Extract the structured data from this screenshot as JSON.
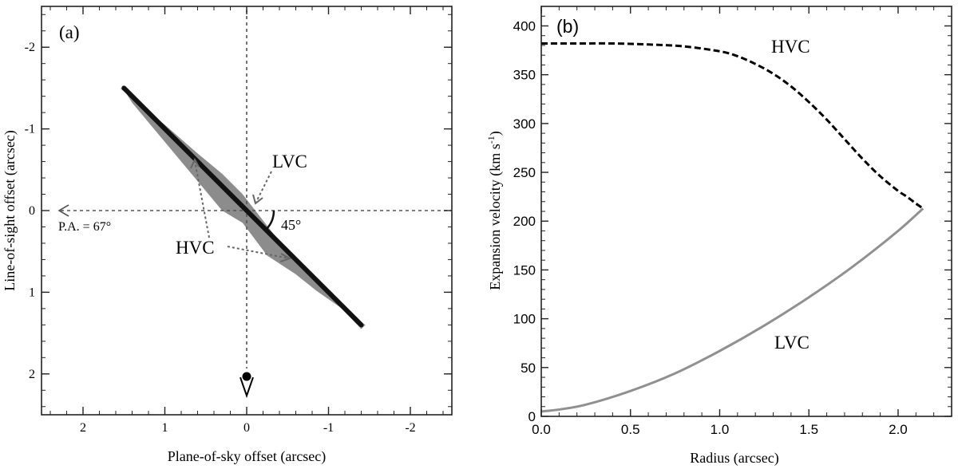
{
  "chart_data": [
    {
      "type": "diagram",
      "panel_label": "(a)",
      "xlabel": "Plane-of-sky offset (arcsec)",
      "ylabel": "Line-of-sight offset (arcsec)",
      "xlim": [
        2.5,
        -2.5
      ],
      "ylim": [
        -2.5,
        2.5
      ],
      "x_ticks": [
        {
          "value": 2,
          "label": "2"
        },
        {
          "value": 1,
          "label": "1"
        },
        {
          "value": 0,
          "label": "0"
        },
        {
          "value": -1,
          "label": "-1"
        },
        {
          "value": -2,
          "label": "-2"
        }
      ],
      "y_ticks": [
        {
          "value": -2,
          "label": "-2"
        },
        {
          "value": -1,
          "label": "-1"
        },
        {
          "value": 0,
          "label": "0"
        },
        {
          "value": 1,
          "label": "1"
        },
        {
          "value": 2,
          "label": "2"
        }
      ],
      "axis_line": {
        "from": [
          1.5,
          -1.5
        ],
        "to": [
          -1.4,
          1.4
        ]
      },
      "envelope": [
        [
          1.55,
          -1.5
        ],
        [
          1.0,
          -1.05
        ],
        [
          0.6,
          -0.7
        ],
        [
          0.3,
          -0.45
        ],
        [
          0.05,
          -0.2
        ],
        [
          -0.3,
          0.25
        ],
        [
          -0.5,
          0.5
        ],
        [
          -0.8,
          0.82
        ],
        [
          -1.4,
          1.45
        ],
        [
          -1.45,
          1.4
        ],
        [
          -0.85,
          0.98
        ],
        [
          -0.6,
          0.78
        ],
        [
          -0.25,
          0.55
        ],
        [
          0.05,
          0.15
        ],
        [
          0.3,
          0.0
        ],
        [
          0.55,
          -0.3
        ],
        [
          0.9,
          -0.72
        ],
        [
          1.4,
          -1.32
        ],
        [
          1.5,
          -1.48
        ]
      ],
      "annotations": {
        "lvc": {
          "text": "LVC",
          "at": [
            -0.58,
            -0.6
          ]
        },
        "hvc": {
          "text": "HVC",
          "at": [
            0.72,
            0.46
          ]
        },
        "pa": {
          "text": "P.A. = 67°",
          "at": [
            2.38,
            0.2
          ]
        },
        "angle": {
          "text": "45°",
          "at": [
            -0.6,
            0.18
          ]
        }
      },
      "observer_marker": {
        "at": [
          0,
          2.1
        ]
      }
    },
    {
      "type": "line",
      "panel_label": "(b)",
      "xlabel": "Radius (arcsec)",
      "ylabel": "Expansion velocity (km s",
      "ylabel_sup": "-1",
      "ylabel_close": ")",
      "xlim": [
        0,
        2.3
      ],
      "ylim": [
        0,
        420
      ],
      "x_ticks": [
        {
          "value": 0,
          "label": "0.0"
        },
        {
          "value": 0.5,
          "label": "0.5"
        },
        {
          "value": 1.0,
          "label": "1.0"
        },
        {
          "value": 1.5,
          "label": "1.5"
        },
        {
          "value": 2.0,
          "label": "2.0"
        }
      ],
      "y_ticks": [
        {
          "value": 0,
          "label": "0"
        },
        {
          "value": 50,
          "label": "50"
        },
        {
          "value": 100,
          "label": "100"
        },
        {
          "value": 150,
          "label": "150"
        },
        {
          "value": 200,
          "label": "200"
        },
        {
          "value": 250,
          "label": "250"
        },
        {
          "value": 300,
          "label": "300"
        },
        {
          "value": 350,
          "label": "350"
        },
        {
          "value": 400,
          "label": "400"
        }
      ],
      "series": [
        {
          "name": "HVC",
          "style": "dashed",
          "color": "#000000",
          "label_at": [
            1.5,
            375
          ],
          "x": [
            0,
            0.2,
            0.4,
            0.6,
            0.8,
            1.0,
            1.1,
            1.2,
            1.3,
            1.4,
            1.5,
            1.6,
            1.7,
            1.8,
            1.9,
            2.0,
            2.05,
            2.1,
            2.14
          ],
          "y": [
            382,
            382,
            382,
            381,
            379,
            374,
            369,
            361,
            351,
            338,
            322,
            304,
            284,
            264,
            246,
            231,
            225,
            218,
            213
          ]
        },
        {
          "name": "LVC",
          "style": "solid",
          "color": "#909090",
          "label_at": [
            1.53,
            85
          ],
          "x": [
            0,
            0.1,
            0.25,
            0.5,
            0.75,
            1.0,
            1.25,
            1.5,
            1.75,
            2.0,
            2.14
          ],
          "y": [
            5,
            7,
            12,
            26,
            44,
            67,
            93,
            122,
            154,
            190,
            213
          ]
        }
      ]
    }
  ]
}
